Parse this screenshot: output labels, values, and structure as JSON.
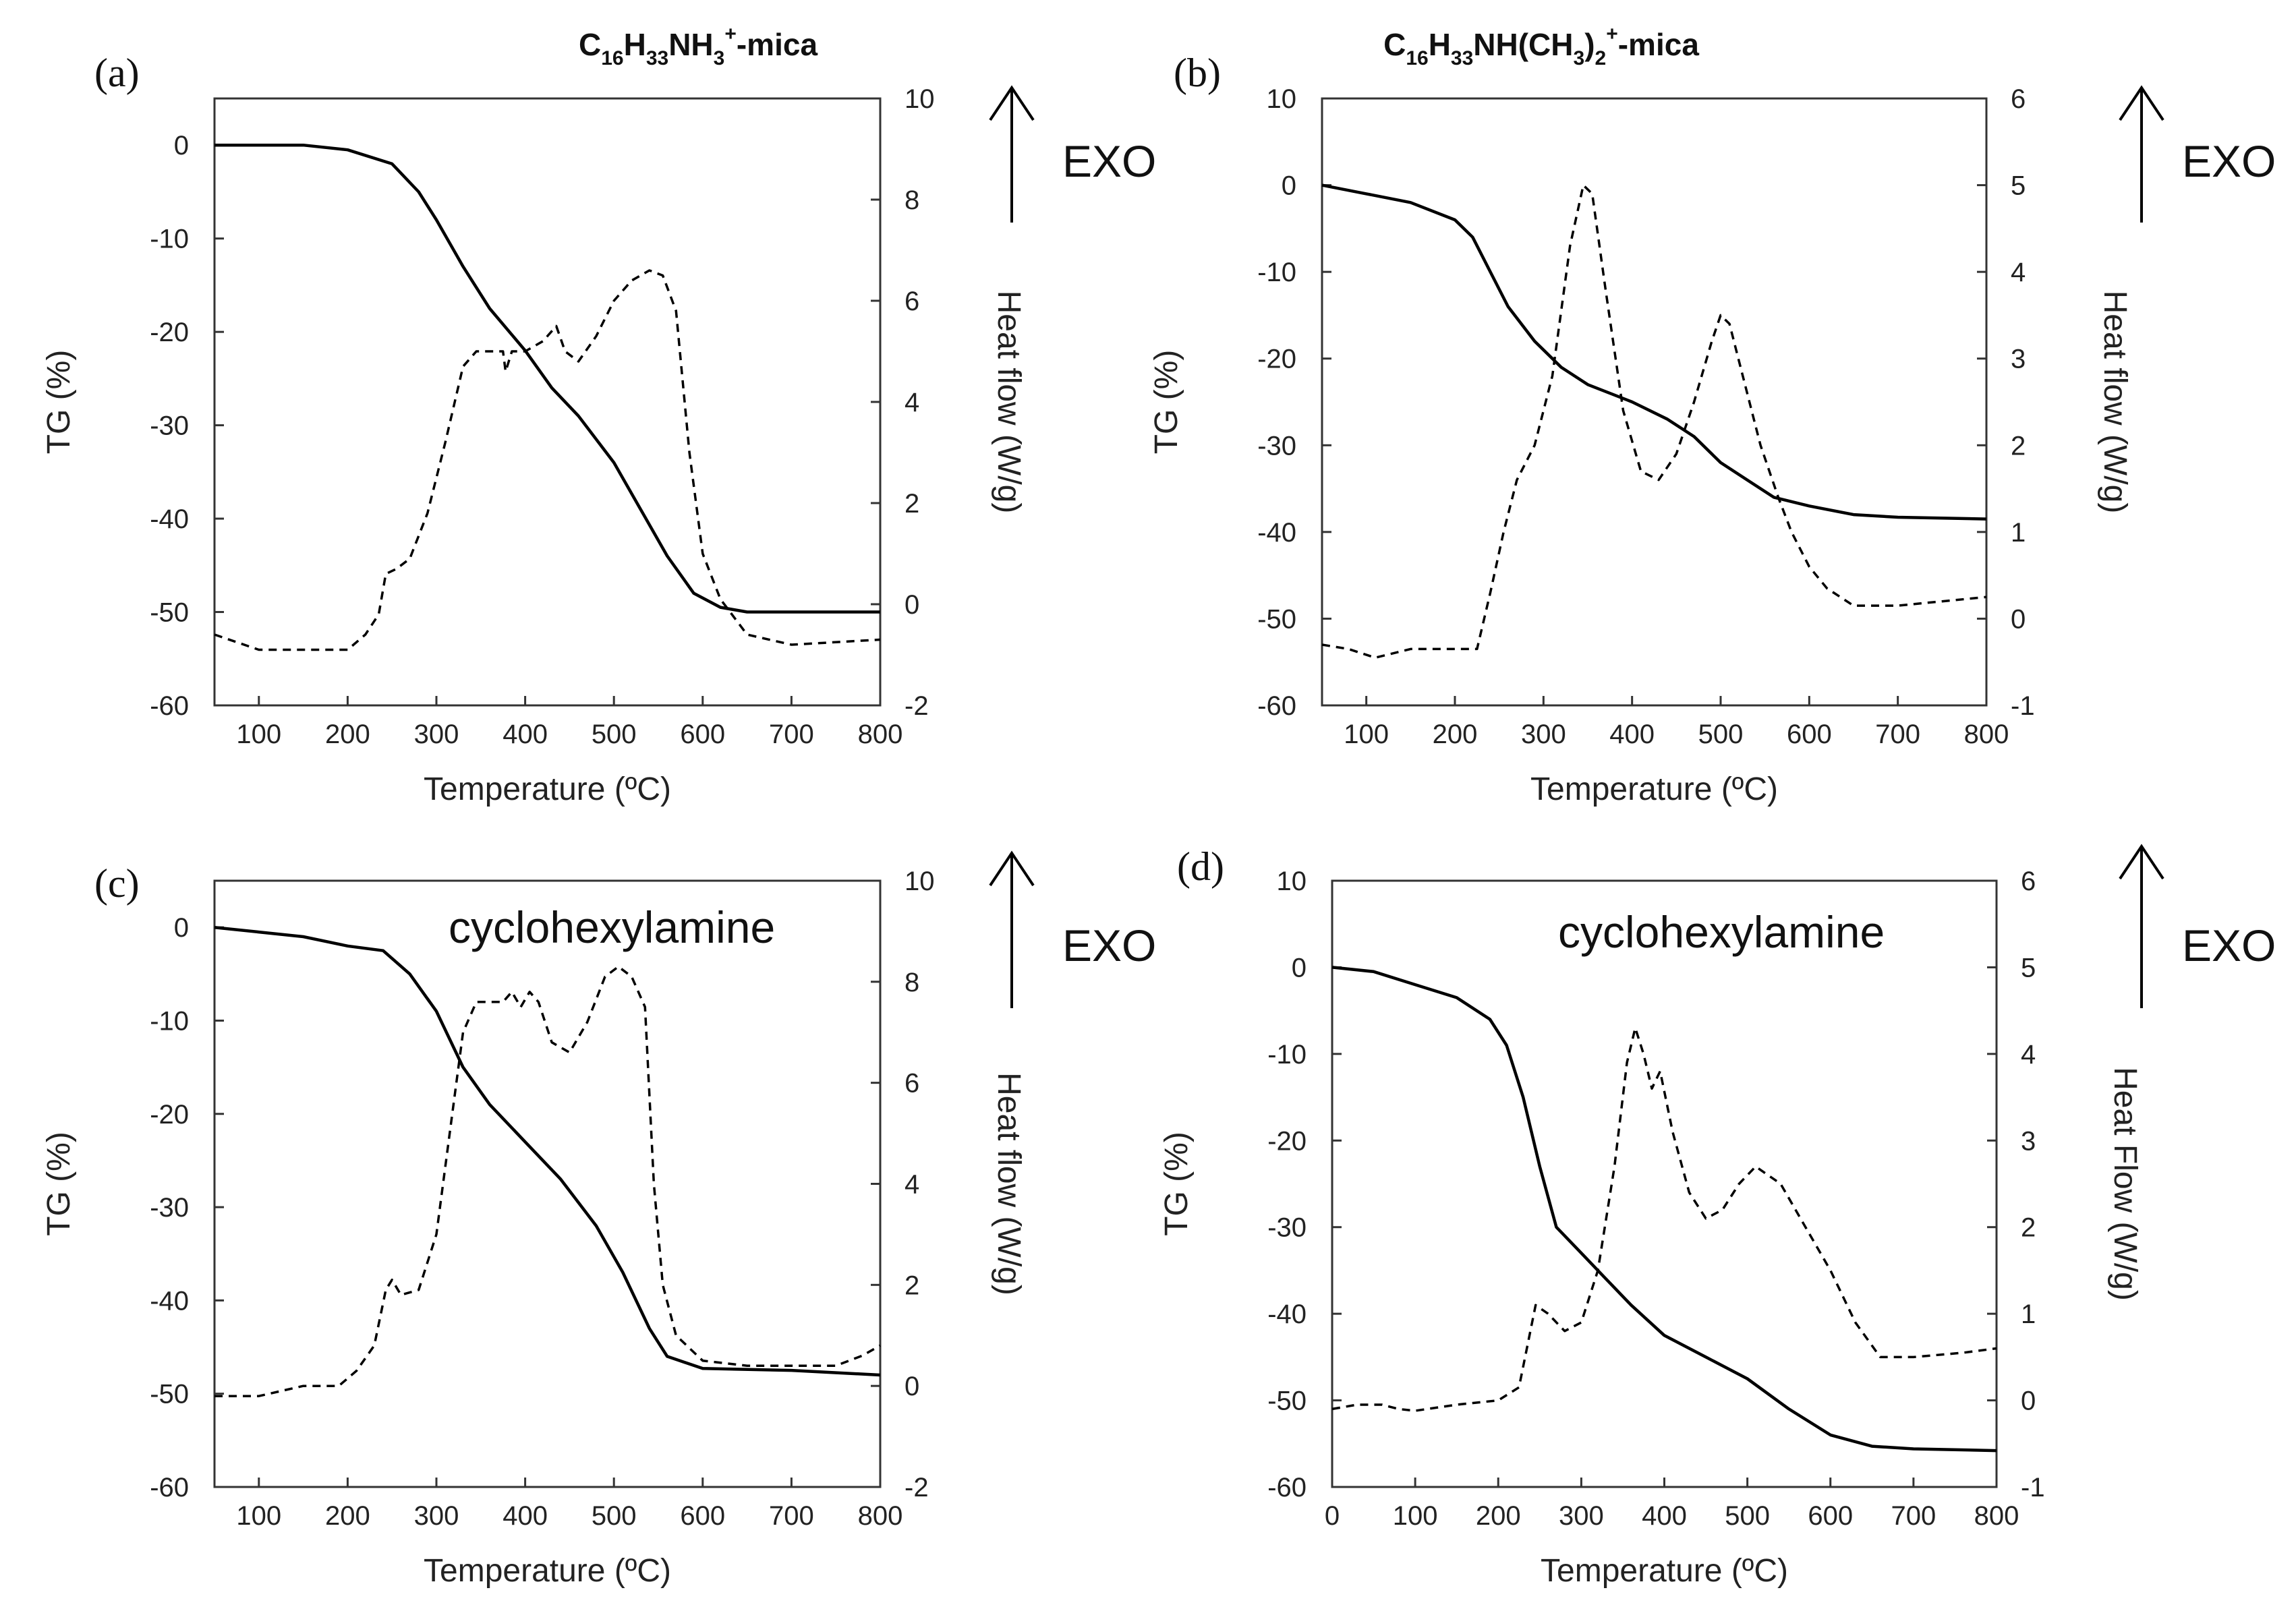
{
  "figure": {
    "panels": [
      {
        "label": "(a)",
        "title": {
          "parts": [
            [
              "C",
              0
            ],
            [
              "16",
              1
            ],
            [
              "H",
              0
            ],
            [
              "33",
              1
            ],
            [
              "NH",
              0
            ],
            [
              "3",
              1
            ],
            [
              "+",
              2
            ],
            [
              "-mica",
              0
            ]
          ]
        },
        "annotation": "",
        "exo_label": "EXO"
      },
      {
        "label": "(b)",
        "title": {
          "parts": [
            [
              "C",
              0
            ],
            [
              "16",
              1
            ],
            [
              "H",
              0
            ],
            [
              "33",
              1
            ],
            [
              "NH(CH",
              0
            ],
            [
              "3",
              1
            ],
            [
              ")",
              0
            ],
            [
              "2",
              1
            ],
            [
              "+",
              2
            ],
            [
              "-mica",
              0
            ]
          ]
        },
        "annotation": "",
        "exo_label": "EXO"
      },
      {
        "label": "(c)",
        "title": {
          "parts": []
        },
        "annotation": "cyclohexylamine",
        "exo_label": "EXO"
      },
      {
        "label": "(d)",
        "title": {
          "parts": []
        },
        "annotation": "cyclohexylamine",
        "exo_label": "EXO"
      }
    ]
  },
  "chart_data": [
    {
      "type": "line",
      "panel": "(a)",
      "xlabel": "Temperature (ºC)",
      "ylabel": "TG (%)",
      "y2label": "Heat flow (W/g)",
      "xlim": [
        50,
        800
      ],
      "xticks": [
        100,
        200,
        300,
        400,
        500,
        600,
        700,
        800
      ],
      "ylim": [
        -60,
        5
      ],
      "yticks": [
        0,
        -10,
        -20,
        -30,
        -40,
        -50,
        -60
      ],
      "y2lim": [
        -2,
        10
      ],
      "y2ticks": [
        10,
        8,
        6,
        4,
        2,
        0,
        -2
      ],
      "series": [
        {
          "name": "TG",
          "axis": "left",
          "style": "solid",
          "points": [
            [
              50,
              0
            ],
            [
              150,
              0
            ],
            [
              200,
              -0.5
            ],
            [
              250,
              -2
            ],
            [
              280,
              -5
            ],
            [
              300,
              -8
            ],
            [
              330,
              -13
            ],
            [
              360,
              -17.5
            ],
            [
              400,
              -22
            ],
            [
              430,
              -26
            ],
            [
              460,
              -29
            ],
            [
              500,
              -34
            ],
            [
              530,
              -39
            ],
            [
              560,
              -44
            ],
            [
              590,
              -48
            ],
            [
              620,
              -49.5
            ],
            [
              650,
              -50
            ],
            [
              800,
              -50
            ]
          ]
        },
        {
          "name": "Heat flow",
          "axis": "right",
          "style": "dashed",
          "points": [
            [
              50,
              -0.6
            ],
            [
              100,
              -0.9
            ],
            [
              150,
              -0.9
            ],
            [
              200,
              -0.9
            ],
            [
              220,
              -0.6
            ],
            [
              235,
              -0.2
            ],
            [
              243,
              0.6
            ],
            [
              255,
              0.7
            ],
            [
              270,
              0.9
            ],
            [
              290,
              1.8
            ],
            [
              310,
              3.2
            ],
            [
              330,
              4.7
            ],
            [
              345,
              5.0
            ],
            [
              375,
              5.0
            ],
            [
              378,
              4.6
            ],
            [
              385,
              5.0
            ],
            [
              400,
              5.0
            ],
            [
              420,
              5.2
            ],
            [
              435,
              5.5
            ],
            [
              445,
              5.0
            ],
            [
              460,
              4.8
            ],
            [
              480,
              5.3
            ],
            [
              500,
              6.0
            ],
            [
              520,
              6.4
            ],
            [
              540,
              6.6
            ],
            [
              555,
              6.5
            ],
            [
              570,
              5.8
            ],
            [
              585,
              3.0
            ],
            [
              600,
              1.0
            ],
            [
              620,
              0.1
            ],
            [
              650,
              -0.6
            ],
            [
              700,
              -0.8
            ],
            [
              800,
              -0.7
            ]
          ]
        }
      ]
    },
    {
      "type": "line",
      "panel": "(b)",
      "xlabel": "Temperature (ºC)",
      "ylabel": "TG (%)",
      "y2label": "Heat flow (W/g)",
      "xlim": [
        50,
        800
      ],
      "xticks": [
        100,
        200,
        300,
        400,
        500,
        600,
        700,
        800
      ],
      "ylim": [
        -60,
        10
      ],
      "yticks": [
        10,
        0,
        -10,
        -20,
        -30,
        -40,
        -50,
        -60
      ],
      "y2lim": [
        -1,
        6
      ],
      "y2ticks": [
        6,
        5,
        4,
        3,
        2,
        1,
        0,
        -1
      ],
      "series": [
        {
          "name": "TG",
          "axis": "left",
          "style": "solid",
          "points": [
            [
              50,
              0
            ],
            [
              100,
              -1
            ],
            [
              150,
              -2
            ],
            [
              200,
              -4
            ],
            [
              220,
              -6
            ],
            [
              240,
              -10
            ],
            [
              260,
              -14
            ],
            [
              290,
              -18
            ],
            [
              320,
              -21
            ],
            [
              350,
              -23
            ],
            [
              400,
              -25
            ],
            [
              440,
              -27
            ],
            [
              470,
              -29
            ],
            [
              500,
              -32
            ],
            [
              530,
              -34
            ],
            [
              560,
              -36
            ],
            [
              600,
              -37
            ],
            [
              650,
              -38
            ],
            [
              700,
              -38.3
            ],
            [
              800,
              -38.5
            ]
          ]
        },
        {
          "name": "Heat flow",
          "axis": "right",
          "style": "dashed",
          "points": [
            [
              50,
              -0.3
            ],
            [
              80,
              -0.35
            ],
            [
              110,
              -0.45
            ],
            [
              150,
              -0.35
            ],
            [
              200,
              -0.35
            ],
            [
              225,
              -0.35
            ],
            [
              240,
              0.3
            ],
            [
              255,
              1.0
            ],
            [
              270,
              1.6
            ],
            [
              290,
              2.0
            ],
            [
              310,
              2.8
            ],
            [
              330,
              4.3
            ],
            [
              345,
              5.0
            ],
            [
              355,
              4.9
            ],
            [
              370,
              3.8
            ],
            [
              390,
              2.4
            ],
            [
              410,
              1.7
            ],
            [
              430,
              1.6
            ],
            [
              450,
              1.9
            ],
            [
              470,
              2.5
            ],
            [
              490,
              3.2
            ],
            [
              500,
              3.5
            ],
            [
              510,
              3.4
            ],
            [
              525,
              2.8
            ],
            [
              545,
              2.0
            ],
            [
              565,
              1.4
            ],
            [
              580,
              1.0
            ],
            [
              600,
              0.6
            ],
            [
              620,
              0.35
            ],
            [
              650,
              0.15
            ],
            [
              700,
              0.15
            ],
            [
              750,
              0.2
            ],
            [
              800,
              0.25
            ]
          ]
        }
      ]
    },
    {
      "type": "line",
      "panel": "(c)",
      "xlabel": "Temperature (ºC)",
      "ylabel": "TG (%)",
      "y2label": "Heat flow (W/g)",
      "xlim": [
        50,
        800
      ],
      "xticks": [
        100,
        200,
        300,
        400,
        500,
        600,
        700,
        800
      ],
      "ylim": [
        -60,
        5
      ],
      "yticks": [
        0,
        -10,
        -20,
        -30,
        -40,
        -50,
        -60
      ],
      "y2lim": [
        -2,
        10
      ],
      "y2ticks": [
        10,
        8,
        6,
        4,
        2,
        0,
        -2
      ],
      "series": [
        {
          "name": "TG",
          "axis": "left",
          "style": "solid",
          "points": [
            [
              50,
              0
            ],
            [
              100,
              -0.5
            ],
            [
              150,
              -1
            ],
            [
              200,
              -2
            ],
            [
              240,
              -2.5
            ],
            [
              270,
              -5
            ],
            [
              300,
              -9
            ],
            [
              330,
              -15
            ],
            [
              360,
              -19
            ],
            [
              400,
              -23
            ],
            [
              440,
              -27
            ],
            [
              480,
              -32
            ],
            [
              510,
              -37
            ],
            [
              540,
              -43
            ],
            [
              560,
              -46
            ],
            [
              600,
              -47.3
            ],
            [
              700,
              -47.5
            ],
            [
              800,
              -48
            ]
          ]
        },
        {
          "name": "Heat flow",
          "axis": "right",
          "style": "dashed",
          "points": [
            [
              50,
              -0.2
            ],
            [
              100,
              -0.2
            ],
            [
              150,
              0
            ],
            [
              190,
              0
            ],
            [
              210,
              0.3
            ],
            [
              230,
              0.8
            ],
            [
              243,
              1.9
            ],
            [
              250,
              2.1
            ],
            [
              260,
              1.8
            ],
            [
              280,
              1.9
            ],
            [
              300,
              3.0
            ],
            [
              315,
              5.0
            ],
            [
              330,
              7.0
            ],
            [
              345,
              7.6
            ],
            [
              375,
              7.6
            ],
            [
              385,
              7.8
            ],
            [
              395,
              7.5
            ],
            [
              405,
              7.8
            ],
            [
              415,
              7.6
            ],
            [
              430,
              6.8
            ],
            [
              450,
              6.6
            ],
            [
              470,
              7.2
            ],
            [
              490,
              8.1
            ],
            [
              505,
              8.3
            ],
            [
              520,
              8.1
            ],
            [
              535,
              7.5
            ],
            [
              545,
              4.0
            ],
            [
              555,
              2.0
            ],
            [
              570,
              1.0
            ],
            [
              600,
              0.5
            ],
            [
              650,
              0.4
            ],
            [
              750,
              0.4
            ],
            [
              780,
              0.6
            ],
            [
              800,
              0.8
            ]
          ]
        }
      ]
    },
    {
      "type": "line",
      "panel": "(d)",
      "xlabel": "Temperature (ºC)",
      "ylabel": "TG (%)",
      "y2label": "Heat Flow (W/g)",
      "xlim": [
        0,
        800
      ],
      "xticks": [
        0,
        100,
        200,
        300,
        400,
        500,
        600,
        700,
        800
      ],
      "ylim": [
        -60,
        10
      ],
      "yticks": [
        10,
        0,
        -10,
        -20,
        -30,
        -40,
        -50,
        -60
      ],
      "y2lim": [
        -1,
        6
      ],
      "y2ticks": [
        6,
        5,
        4,
        3,
        2,
        1,
        0,
        -1
      ],
      "series": [
        {
          "name": "TG",
          "axis": "left",
          "style": "solid",
          "points": [
            [
              0,
              0
            ],
            [
              50,
              -0.5
            ],
            [
              100,
              -2
            ],
            [
              150,
              -3.5
            ],
            [
              190,
              -6
            ],
            [
              210,
              -9
            ],
            [
              230,
              -15
            ],
            [
              250,
              -23
            ],
            [
              270,
              -30
            ],
            [
              300,
              -33
            ],
            [
              330,
              -36
            ],
            [
              360,
              -39
            ],
            [
              400,
              -42.5
            ],
            [
              450,
              -45
            ],
            [
              500,
              -47.5
            ],
            [
              550,
              -51
            ],
            [
              600,
              -54
            ],
            [
              650,
              -55.3
            ],
            [
              700,
              -55.6
            ],
            [
              800,
              -55.8
            ]
          ]
        },
        {
          "name": "Heat flow",
          "axis": "right",
          "style": "dashed",
          "points": [
            [
              0,
              -0.1
            ],
            [
              30,
              -0.05
            ],
            [
              60,
              -0.05
            ],
            [
              80,
              -0.1
            ],
            [
              100,
              -0.12
            ],
            [
              150,
              -0.05
            ],
            [
              200,
              0
            ],
            [
              225,
              0.15
            ],
            [
              245,
              1.1
            ],
            [
              260,
              1.0
            ],
            [
              280,
              0.8
            ],
            [
              300,
              0.9
            ],
            [
              320,
              1.5
            ],
            [
              340,
              2.7
            ],
            [
              355,
              3.9
            ],
            [
              365,
              4.3
            ],
            [
              375,
              4.0
            ],
            [
              385,
              3.6
            ],
            [
              395,
              3.8
            ],
            [
              410,
              3.1
            ],
            [
              430,
              2.4
            ],
            [
              450,
              2.1
            ],
            [
              470,
              2.2
            ],
            [
              490,
              2.5
            ],
            [
              510,
              2.7
            ],
            [
              540,
              2.5
            ],
            [
              570,
              2.0
            ],
            [
              600,
              1.5
            ],
            [
              630,
              0.9
            ],
            [
              660,
              0.5
            ],
            [
              700,
              0.5
            ],
            [
              760,
              0.55
            ],
            [
              800,
              0.6
            ]
          ]
        }
      ]
    }
  ]
}
